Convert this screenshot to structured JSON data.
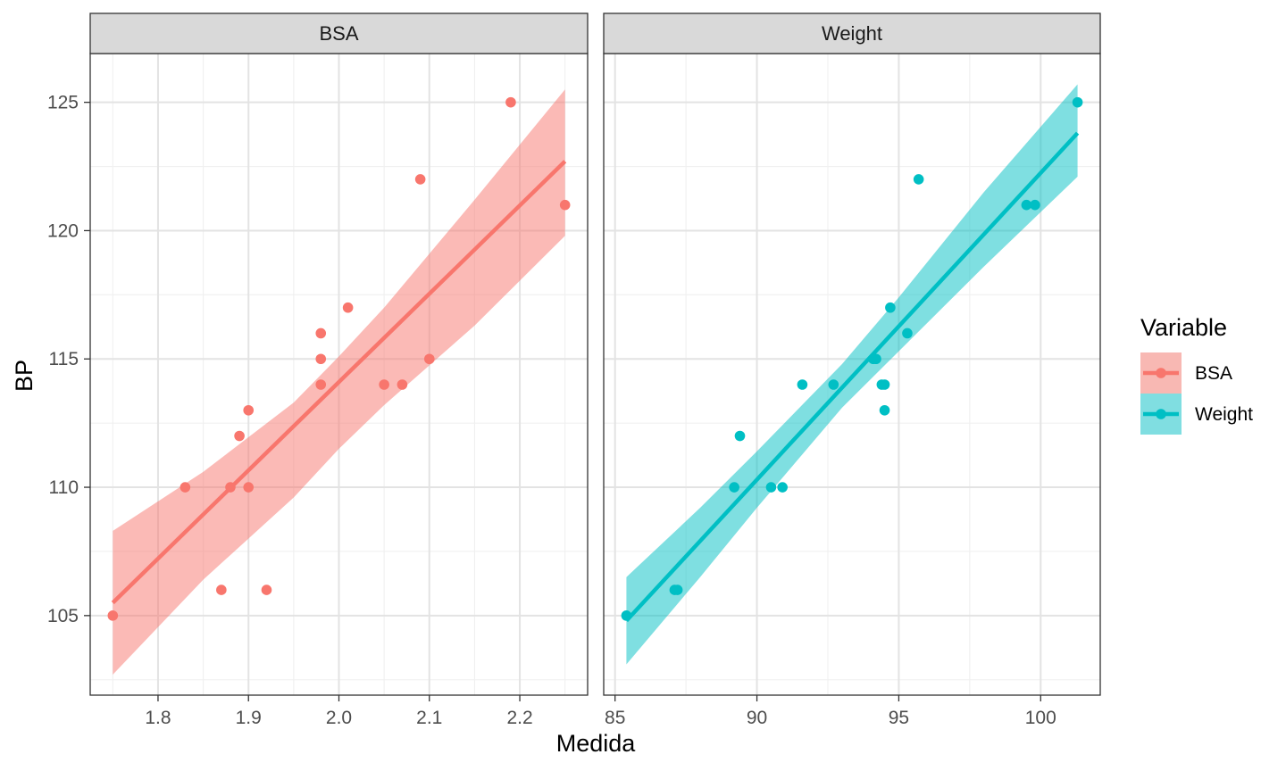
{
  "chart_data": {
    "type": "scatter",
    "ylabel": "BP",
    "xlabel": "Medida",
    "ylim": [
      101.9,
      126.9
    ],
    "yticks": [
      105,
      110,
      115,
      120,
      125
    ],
    "grid": true,
    "legend": {
      "title": "Variable",
      "position": "right",
      "entries": [
        {
          "label": "BSA",
          "color": "#F8766D",
          "fill": "#F8B8B3"
        },
        {
          "label": "Weight",
          "color": "#00BFC4",
          "fill": "#80DEE1"
        }
      ]
    },
    "panels": [
      {
        "name": "BSA",
        "color": "#F8766D",
        "band_fill": "#F8766D",
        "xlim": [
          1.725,
          2.275
        ],
        "xticks": [
          1.8,
          1.9,
          2.0,
          2.1,
          2.2
        ],
        "xtick_labels": [
          "1.8",
          "1.9",
          "2.0",
          "2.1",
          "2.2"
        ],
        "points": [
          [
            1.75,
            105
          ],
          [
            1.83,
            110
          ],
          [
            1.87,
            106
          ],
          [
            1.88,
            110
          ],
          [
            1.89,
            112
          ],
          [
            1.9,
            113
          ],
          [
            1.9,
            110
          ],
          [
            1.92,
            106
          ],
          [
            1.98,
            116
          ],
          [
            1.98,
            115
          ],
          [
            1.98,
            114
          ],
          [
            2.01,
            117
          ],
          [
            2.05,
            114
          ],
          [
            2.07,
            114
          ],
          [
            2.09,
            122
          ],
          [
            2.1,
            115
          ],
          [
            2.19,
            125
          ],
          [
            2.25,
            121
          ]
        ],
        "fit": {
          "x": [
            1.75,
            2.25
          ],
          "y": [
            105.5,
            122.7
          ]
        },
        "band": [
          [
            1.75,
            102.7,
            108.3
          ],
          [
            1.85,
            106.4,
            110.6
          ],
          [
            1.95,
            109.6,
            113.3
          ],
          [
            2.0,
            111.5,
            115.1
          ],
          [
            2.05,
            113.2,
            117.0
          ],
          [
            2.15,
            116.3,
            121.2
          ],
          [
            2.25,
            119.8,
            125.5
          ]
        ]
      },
      {
        "name": "Weight",
        "color": "#00BFC4",
        "band_fill": "#00BFC4",
        "xlim": [
          84.6,
          102.1
        ],
        "xticks": [
          85,
          90,
          95,
          100
        ],
        "xtick_labels": [
          "85",
          "90",
          "95",
          "100"
        ],
        "points": [
          [
            85.4,
            105
          ],
          [
            87.1,
            106
          ],
          [
            87.2,
            106
          ],
          [
            89.2,
            110
          ],
          [
            89.4,
            112
          ],
          [
            90.5,
            110
          ],
          [
            90.9,
            110
          ],
          [
            91.6,
            114
          ],
          [
            92.7,
            114
          ],
          [
            94.1,
            115
          ],
          [
            94.2,
            115
          ],
          [
            94.4,
            114
          ],
          [
            94.5,
            114
          ],
          [
            94.5,
            113
          ],
          [
            94.7,
            117
          ],
          [
            95.3,
            116
          ],
          [
            95.7,
            122
          ],
          [
            99.5,
            121
          ],
          [
            99.8,
            121
          ],
          [
            101.3,
            125
          ]
        ],
        "fit": {
          "x": [
            85.4,
            101.3
          ],
          "y": [
            104.8,
            123.8
          ]
        },
        "band": [
          [
            85.4,
            103.1,
            106.5
          ],
          [
            88.0,
            106.5,
            109.2
          ],
          [
            90.0,
            109.2,
            111.4
          ],
          [
            93.0,
            113.1,
            114.8
          ],
          [
            95.0,
            115.3,
            117.4
          ],
          [
            98.0,
            118.6,
            121.5
          ],
          [
            101.3,
            122.1,
            125.7
          ]
        ]
      }
    ]
  }
}
